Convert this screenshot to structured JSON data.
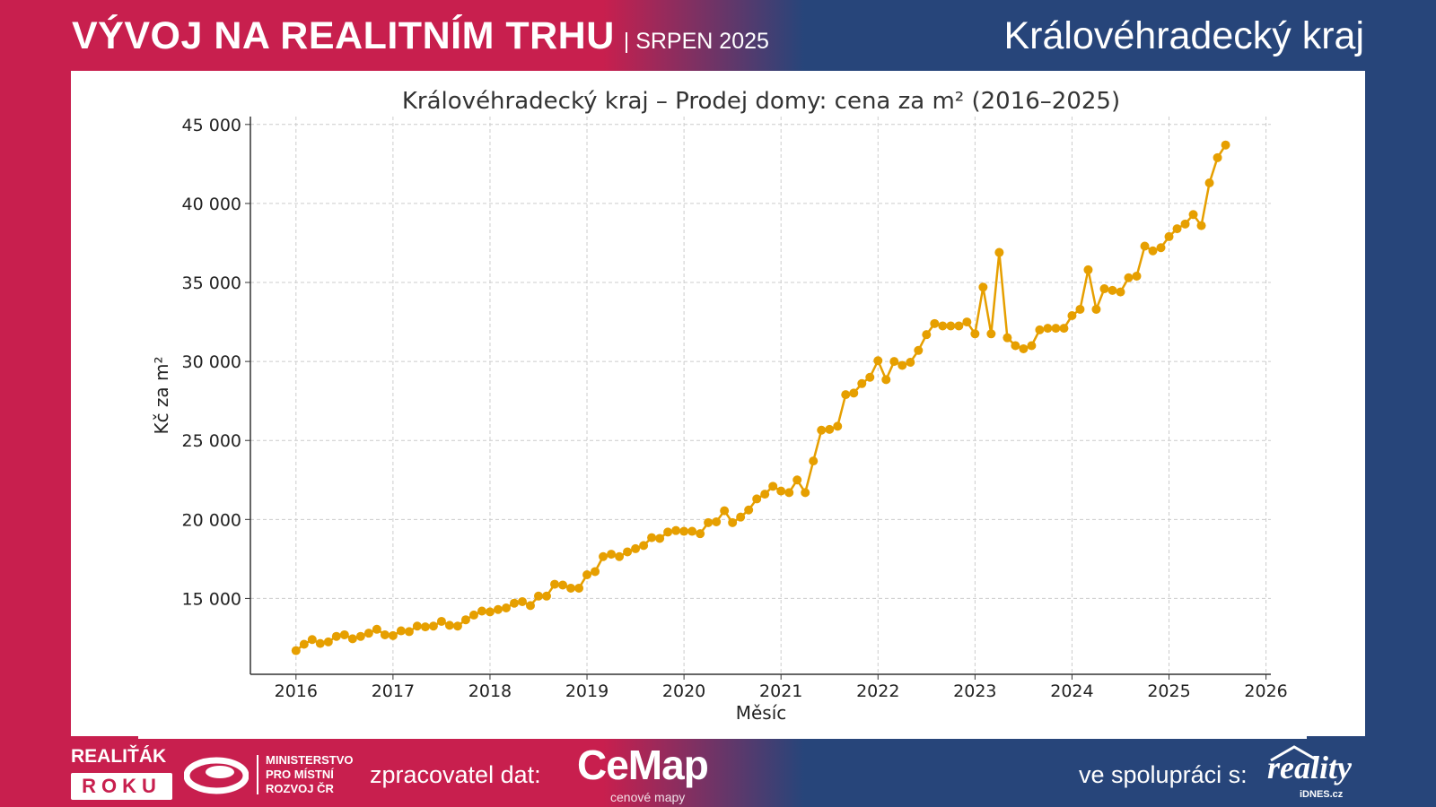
{
  "header": {
    "title": "VÝVOJ NA REALITNÍM TRHU",
    "subtitle": "| SRPEN 2025",
    "region": "Královéhradecký kraj"
  },
  "colors": {
    "crimson": "#c81f4e",
    "navy": "#27457a",
    "series": "#e69f00"
  },
  "footer": {
    "realitak": "REALIŤÁK",
    "roku": "ROKU",
    "ministry": [
      "MINISTERSTVO",
      "PRO MÍSTNÍ",
      "ROZVOJ ČR"
    ],
    "processor_label": "zpracovatel dat:",
    "cemap": "CeMap",
    "cemap_sub": "cenové mapy",
    "partner_label": "ve spolupráci s:",
    "reality": "reality",
    "idnes": "iDNES.cz"
  },
  "chart_data": {
    "type": "line",
    "title": "Královéhradecký kraj – Prodej domy: cena za m² (2016–2025)",
    "xlabel": "Měsíc",
    "ylabel": "Kč za m²",
    "xlim": [
      2015.53,
      2026.05
    ],
    "ylim": [
      10200,
      45500
    ],
    "grid": true,
    "x_ticks": [
      2016,
      2017,
      2018,
      2019,
      2020,
      2021,
      2022,
      2023,
      2024,
      2025,
      2026
    ],
    "x_tick_labels": [
      "2016",
      "2017",
      "2018",
      "2019",
      "2020",
      "2021",
      "2022",
      "2023",
      "2024",
      "2025",
      "2026"
    ],
    "y_ticks": [
      15000,
      20000,
      25000,
      30000,
      35000,
      40000,
      45000
    ],
    "y_tick_labels": [
      "15 000",
      "20 000",
      "25 000",
      "30 000",
      "35 000",
      "40 000",
      "45 000"
    ],
    "start": "2016-01",
    "frequency": "monthly",
    "values": [
      11700,
      12100,
      12400,
      12150,
      12250,
      12600,
      12700,
      12450,
      12600,
      12800,
      13050,
      12700,
      12650,
      12950,
      12900,
      13250,
      13200,
      13250,
      13550,
      13300,
      13250,
      13650,
      13950,
      14200,
      14150,
      14300,
      14400,
      14700,
      14800,
      14550,
      15150,
      15150,
      15900,
      15850,
      15650,
      15650,
      16500,
      16700,
      17650,
      17800,
      17650,
      17950,
      18150,
      18350,
      18850,
      18800,
      19200,
      19300,
      19250,
      19250,
      19100,
      19800,
      19850,
      20550,
      19800,
      20150,
      20600,
      21300,
      21600,
      22100,
      21800,
      21700,
      22500,
      21700,
      23700,
      25650,
      25700,
      25900,
      27900,
      28000,
      28600,
      29000,
      30050,
      28850,
      30000,
      29750,
      29950,
      30700,
      31700,
      32400,
      32250,
      32250,
      32250,
      32500,
      31750,
      34700,
      31750,
      36900,
      31500,
      31000,
      30800,
      31000,
      32000,
      32100,
      32100,
      32100,
      32900,
      33300,
      35800,
      33300,
      34600,
      34500,
      34400,
      35300,
      35400,
      37300,
      37000,
      37200,
      37900,
      38400,
      38700,
      39300,
      38600,
      41300,
      42900,
      43700
    ]
  }
}
